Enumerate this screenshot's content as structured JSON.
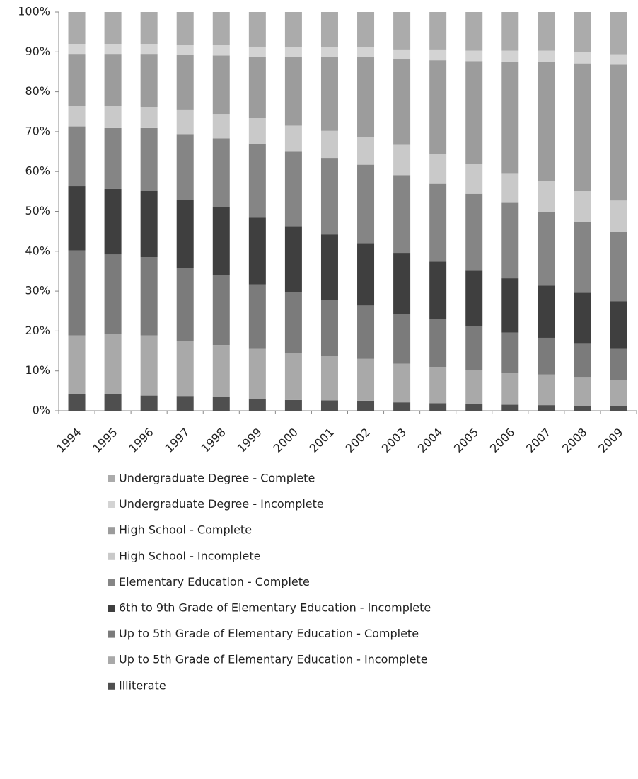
{
  "chart_data": {
    "type": "stacked-bar",
    "categories": [
      "1994",
      "1995",
      "1996",
      "1997",
      "1998",
      "1999",
      "2000",
      "2001",
      "2002",
      "2003",
      "2004",
      "2005",
      "2006",
      "2007",
      "2008",
      "2009"
    ],
    "series": [
      {
        "name": "Illiterate",
        "color": "#4f4f4f",
        "values": [
          4.1,
          4.1,
          3.8,
          3.7,
          3.4,
          3.0,
          2.7,
          2.6,
          2.5,
          2.1,
          1.9,
          1.6,
          1.5,
          1.4,
          1.2,
          1.1
        ]
      },
      {
        "name": "Up to 5th Grade of Elementary Education - Incomplete",
        "color": "#a9a9a9",
        "values": [
          14.8,
          15.1,
          15.1,
          13.8,
          13.1,
          12.5,
          11.7,
          11.2,
          10.5,
          9.7,
          9.1,
          8.6,
          7.9,
          7.7,
          7.1,
          6.5
        ]
      },
      {
        "name": "Up to 5th Grade of Elementary Education - Complete",
        "color": "#7b7b7b",
        "values": [
          21.3,
          20.0,
          19.6,
          18.2,
          17.6,
          16.2,
          15.4,
          14.0,
          13.4,
          12.5,
          12.0,
          11.0,
          10.2,
          9.2,
          8.5,
          7.9
        ]
      },
      {
        "name": "6th to 9th Grade of Elementary Education - Incomplete",
        "color": "#3f3f3f",
        "values": [
          16.1,
          16.4,
          16.7,
          17.1,
          16.9,
          16.7,
          16.5,
          16.4,
          15.6,
          15.3,
          14.4,
          14.1,
          13.6,
          13.1,
          12.8,
          12.0
        ]
      },
      {
        "name": "Elementary Education - Complete",
        "color": "#858585",
        "values": [
          15.0,
          15.3,
          15.7,
          16.6,
          17.3,
          18.6,
          18.8,
          19.2,
          19.7,
          19.5,
          19.5,
          19.1,
          19.1,
          18.4,
          17.7,
          17.3
        ]
      },
      {
        "name": "High School - Incomplete",
        "color": "#c9c9c9",
        "values": [
          5.1,
          5.5,
          5.3,
          6.1,
          6.1,
          6.4,
          6.4,
          6.8,
          7.0,
          7.6,
          7.4,
          7.5,
          7.3,
          7.8,
          7.9,
          7.9
        ]
      },
      {
        "name": "High School - Complete",
        "color": "#9c9c9c",
        "values": [
          13.1,
          13.1,
          13.3,
          13.8,
          14.7,
          15.4,
          17.3,
          18.6,
          20.1,
          21.4,
          23.6,
          25.8,
          27.9,
          29.9,
          31.9,
          34.1
        ]
      },
      {
        "name": "Undergraduate Degree - Incomplete",
        "color": "#d3d3d3",
        "values": [
          2.5,
          2.5,
          2.5,
          2.4,
          2.6,
          2.5,
          2.4,
          2.4,
          2.4,
          2.5,
          2.7,
          2.6,
          2.8,
          2.8,
          2.9,
          2.6
        ]
      },
      {
        "name": "Undergraduate Degree - Complete",
        "color": "#ababab",
        "values": [
          8.0,
          8.0,
          8.0,
          8.3,
          8.3,
          8.7,
          8.8,
          8.8,
          8.8,
          9.4,
          9.4,
          9.7,
          9.7,
          9.7,
          10.0,
          10.6
        ]
      }
    ],
    "ylim": [
      0,
      100
    ],
    "yticks": [
      {
        "value": 0,
        "label": "0%"
      },
      {
        "value": 10,
        "label": "10%"
      },
      {
        "value": 20,
        "label": "20%"
      },
      {
        "value": 30,
        "label": "30%"
      },
      {
        "value": 40,
        "label": "40%"
      },
      {
        "value": 50,
        "label": "50%"
      },
      {
        "value": 60,
        "label": "60%"
      },
      {
        "value": 70,
        "label": "70%"
      },
      {
        "value": 80,
        "label": "80%"
      },
      {
        "value": 90,
        "label": "90%"
      },
      {
        "value": 100,
        "label": "100%"
      }
    ]
  }
}
